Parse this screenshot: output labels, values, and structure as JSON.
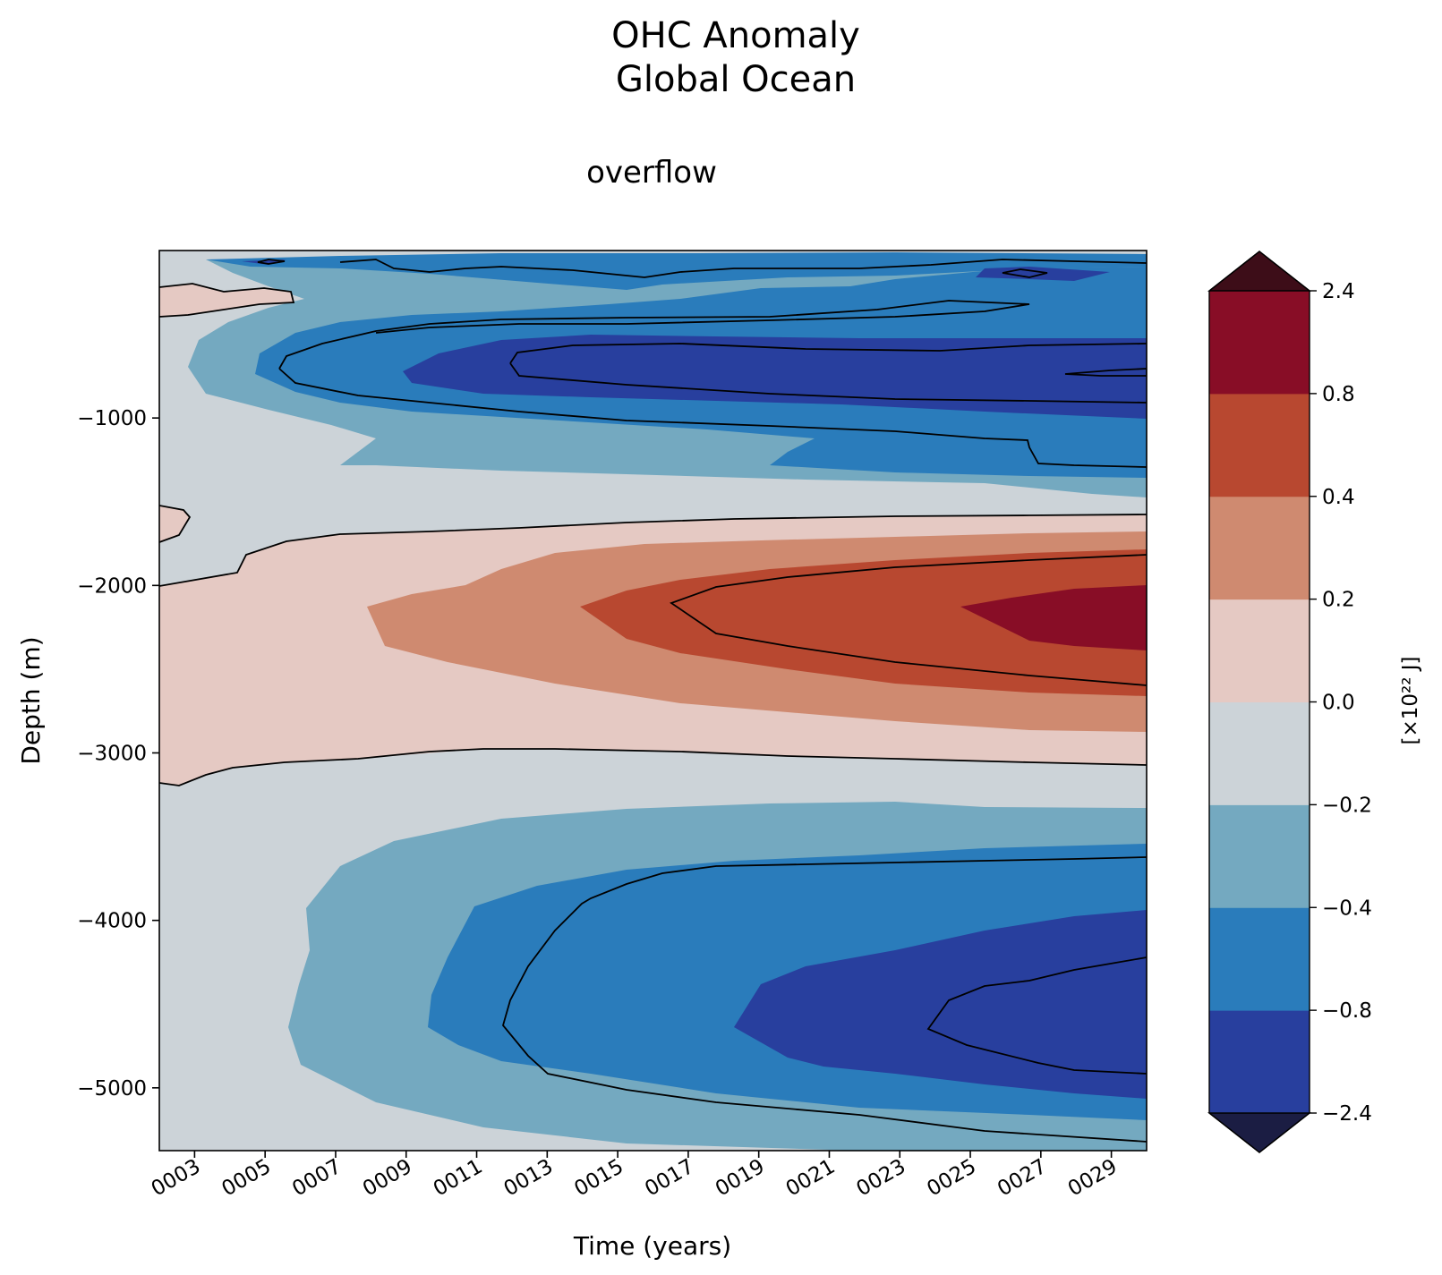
{
  "chart_data": {
    "type": "heatmap",
    "title": "OHC Anomaly",
    "subtitle": "Global Ocean",
    "panel_title": "overflow",
    "xlabel": "Time (years)",
    "ylabel": "Depth (m)",
    "x_ticks": [
      "0003",
      "0005",
      "0007",
      "0009",
      "0011",
      "0013",
      "0015",
      "0017",
      "0019",
      "0021",
      "0023",
      "0025",
      "0027",
      "0029"
    ],
    "x_tick_values": [
      3,
      5,
      7,
      9,
      11,
      13,
      15,
      17,
      19,
      21,
      23,
      25,
      27,
      29
    ],
    "xlim": [
      2.0,
      30.0
    ],
    "y_ticks": [
      "−1000",
      "−2000",
      "−3000",
      "−4000",
      "−5000"
    ],
    "y_tick_values": [
      -1000,
      -2000,
      -3000,
      -4000,
      -5000
    ],
    "ylim": [
      -5375,
      0
    ],
    "colorbar": {
      "label": "[×10²² J]",
      "levels": [
        -2.4,
        -0.8,
        -0.4,
        -0.2,
        0.0,
        0.2,
        0.4,
        0.8,
        2.4
      ],
      "tick_labels": [
        "−2.4",
        "−0.8",
        "−0.4",
        "−0.2",
        "0.0",
        "0.2",
        "0.4",
        "0.8",
        "2.4"
      ],
      "colors": [
        "#283f9e",
        "#2a7cbb",
        "#74a9c0",
        "#ccd3d8",
        "#e5c9c3",
        "#cf8a70",
        "#b84830",
        "#880d26"
      ],
      "under_color": "#1b1d43",
      "over_color": "#3d0d18",
      "extend": "both"
    },
    "features": [
      {
        "x": 21.0,
        "depth": -2150,
        "value": 0.6,
        "sign": "positive",
        "note": "warm anomaly core"
      },
      {
        "x": 28.0,
        "depth": -2200,
        "value": 1.0,
        "sign": "positive",
        "note": "strongest warm core"
      },
      {
        "x": 22.0,
        "depth": -720,
        "value": -1.0,
        "sign": "negative",
        "note": "upper cold core"
      },
      {
        "x": 27.0,
        "depth": -4600,
        "value": -1.2,
        "sign": "negative",
        "note": "deep cold core"
      }
    ],
    "contour_color": "#000000"
  }
}
